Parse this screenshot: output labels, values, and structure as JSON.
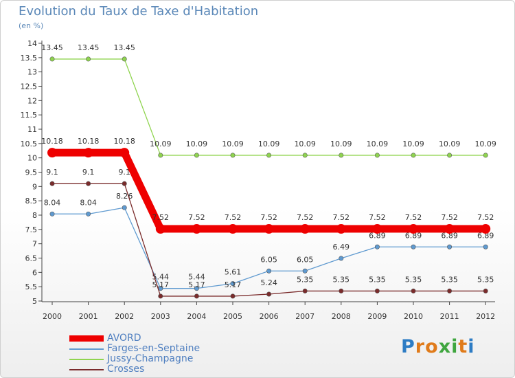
{
  "chart_data": {
    "type": "line",
    "title": "Evolution du Taux de Taxe d'Habitation",
    "subtitle": "(en %)",
    "categories": [
      "2000",
      "2001",
      "2002",
      "2003",
      "2004",
      "2005",
      "2006",
      "2007",
      "2008",
      "2009",
      "2010",
      "2011",
      "2012"
    ],
    "ylim": [
      5,
      14
    ],
    "yticks": [
      "5",
      "5.5",
      "6",
      "6.5",
      "7",
      "7.5",
      "8",
      "8.5",
      "9",
      "9.5",
      "10",
      "10.5",
      "11",
      "11.5",
      "12",
      "12.5",
      "13",
      "13.5",
      "14"
    ],
    "grid": false,
    "legend_position": "bottom-left",
    "series": [
      {
        "name": "AVORD",
        "color": "#ee0000",
        "values": [
          10.18,
          10.18,
          10.18,
          7.52,
          7.52,
          7.52,
          7.52,
          7.52,
          7.52,
          7.52,
          7.52,
          7.52,
          7.52
        ],
        "labels": [
          "10.18",
          "10.18",
          "10.18",
          "7.52",
          "7.52",
          "7.52",
          "7.52",
          "7.52",
          "7.52",
          "7.52",
          "7.52",
          "7.52",
          "7.52"
        ]
      },
      {
        "name": "Farges-en-Septaine",
        "color": "#5f9ad0",
        "values": [
          8.04,
          8.04,
          8.26,
          5.44,
          5.44,
          5.61,
          6.05,
          6.05,
          6.49,
          6.89,
          6.89,
          6.89,
          6.89
        ],
        "labels": [
          "8.04",
          "8.04",
          "8.26",
          "5.44",
          "5.44",
          "5.61",
          "6.05",
          "6.05",
          "6.49",
          "6.89",
          "6.89",
          "6.89",
          "6.89"
        ]
      },
      {
        "name": "Jussy-Champagne",
        "color": "#8fd44f",
        "values": [
          13.45,
          13.45,
          13.45,
          10.09,
          10.09,
          10.09,
          10.09,
          10.09,
          10.09,
          10.09,
          10.09,
          10.09,
          10.09
        ],
        "labels": [
          "13.45",
          "13.45",
          "13.45",
          "10.09",
          "10.09",
          "10.09",
          "10.09",
          "10.09",
          "10.09",
          "10.09",
          "10.09",
          "10.09",
          "10.09"
        ]
      },
      {
        "name": "Crosses",
        "color": "#7a2b2b",
        "values": [
          9.1,
          9.1,
          9.1,
          5.17,
          5.17,
          5.17,
          5.24,
          5.35,
          5.35,
          5.35,
          5.35,
          5.35,
          5.35
        ],
        "labels": [
          "9.1",
          "9.1",
          "9.1",
          "5.17",
          "5.17",
          "5.17",
          "5.24",
          "5.35",
          "5.35",
          "5.35",
          "5.35",
          "5.35",
          "5.35"
        ]
      }
    ]
  },
  "logo": {
    "text": "Proxiti",
    "letters": [
      "P",
      "r",
      "o",
      "x",
      "i",
      "t",
      "i"
    ],
    "colors": [
      "#2d7cc4",
      "#e07b1a",
      "#e07b1a",
      "#3fa63f",
      "#3fa63f",
      "#e07b1a",
      "#2d7cc4"
    ]
  }
}
